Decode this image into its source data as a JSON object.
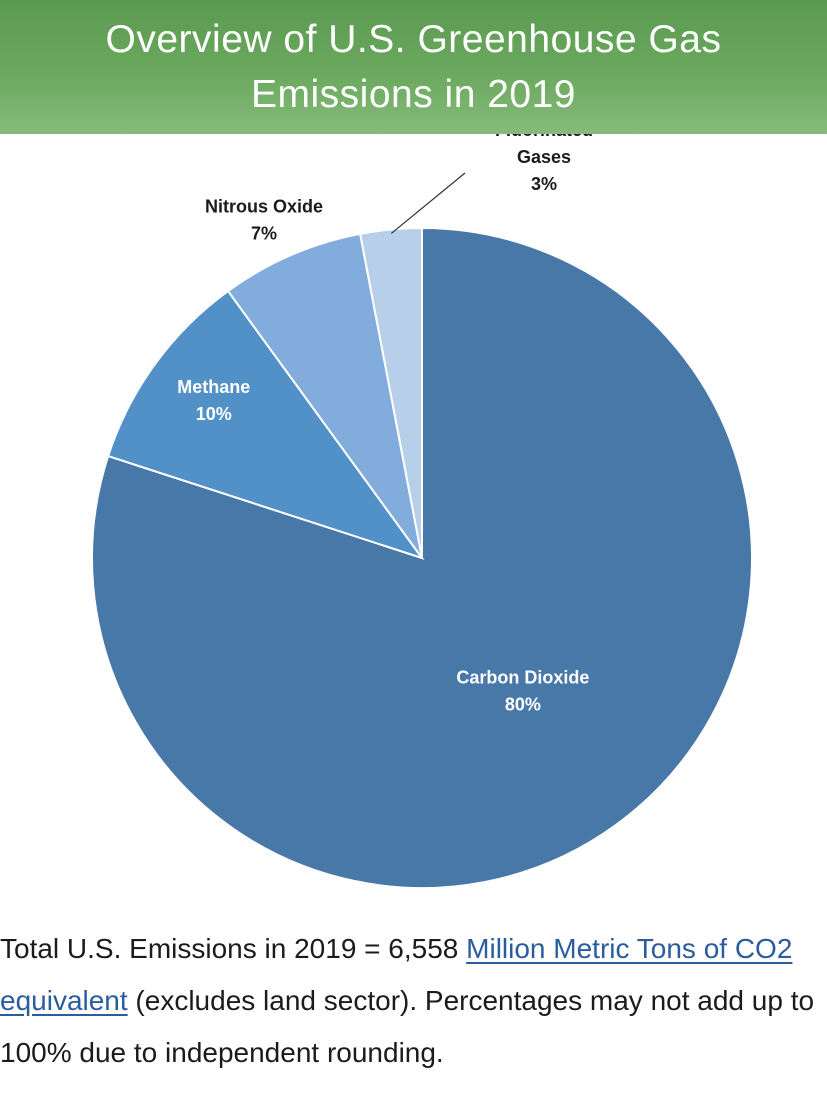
{
  "header": {
    "title": "Overview of U.S. Greenhouse Gas Emissions in 2019",
    "bg_color": "#6aa95e"
  },
  "chart_data": {
    "type": "pie",
    "title": "Overview of U.S. Greenhouse Gas Emissions in 2019",
    "start_angle_deg": 0,
    "direction": "clockwise",
    "slices": [
      {
        "label": "Carbon Dioxide",
        "value": 80,
        "value_label": "80%",
        "color": "#4878a8",
        "label_color": "#ffffff"
      },
      {
        "label": "Methane",
        "value": 10,
        "value_label": "10%",
        "color": "#5290c8",
        "label_color": "#ffffff"
      },
      {
        "label": "Nitrous Oxide",
        "value": 7,
        "value_label": "7%",
        "color": "#82acdc",
        "label_color": "#1b1b1b"
      },
      {
        "label": "Fluorinated Gases",
        "label_lines": [
          "Fluorinated",
          "Gases"
        ],
        "value": 3,
        "value_label": "3%",
        "color": "#b8cfe9",
        "label_color": "#1b1b1b"
      }
    ]
  },
  "caption": {
    "prefix": "Total U.S. Emissions in 2019 = 6,558 ",
    "link_text": "Million Metric Tons of CO2 equivalent",
    "suffix": " (excludes land sector). Percentages may not add up to 100% due to independent rounding.",
    "link_color": "#2a5d9e"
  }
}
